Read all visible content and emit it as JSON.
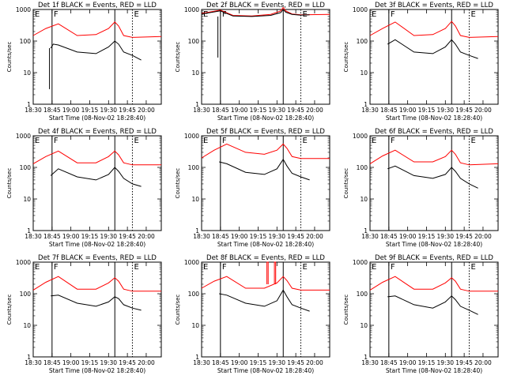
{
  "common": {
    "ylabel": "Counts/sec",
    "xlabel": "Start Time (08-Nov-02 18:28:40)",
    "x_tick_labels": [
      "18:30",
      "18:45",
      "19:00",
      "19:15",
      "19:30",
      "19:45",
      "20:00"
    ],
    "y_tick_labels": [
      "1",
      "10",
      "100",
      "1000"
    ],
    "marker_labels": [
      "E",
      "F",
      "E"
    ]
  },
  "chart_data": [
    {
      "type": "line",
      "title": "Det 1f BLACK = Events, RED = LLD",
      "xlabel": "Start Time (08-Nov-02 18:28:40)",
      "ylabel": "Counts/sec",
      "x_minutes": [
        0,
        102
      ],
      "ylim": [
        1,
        1000
      ],
      "yscale": "log",
      "markers": [
        {
          "label": "E",
          "t": 0
        },
        {
          "label": "F",
          "t": 15
        },
        {
          "label": "",
          "t": 65
        },
        {
          "label": "E",
          "t": 79
        }
      ],
      "series": [
        {
          "name": "LLD",
          "color": "#ff0000",
          "t": [
            0,
            10,
            20,
            35,
            50,
            60,
            65,
            68,
            72,
            79,
            102
          ],
          "values": [
            150,
            250,
            350,
            150,
            160,
            250,
            400,
            300,
            150,
            130,
            140
          ]
        },
        {
          "name": "Events",
          "color": "#000000",
          "t": [
            14,
            16,
            20,
            35,
            50,
            60,
            65,
            68,
            72,
            79,
            86
          ],
          "values": [
            60,
            80,
            75,
            45,
            40,
            65,
            100,
            80,
            45,
            35,
            25
          ]
        },
        {
          "name": "Events-spike",
          "color": "#000000",
          "t": [
            13,
            13
          ],
          "values": [
            3,
            60
          ]
        }
      ]
    },
    {
      "type": "line",
      "title": "Det 2f BLACK = Events, RED = LLD",
      "xlabel": "Start Time (08-Nov-02 18:28:40)",
      "ylabel": "Counts/sec",
      "x_minutes": [
        0,
        102
      ],
      "ylim": [
        1,
        1000
      ],
      "yscale": "log",
      "markers": [
        {
          "label": "E",
          "t": 0
        },
        {
          "label": "F",
          "t": 15
        },
        {
          "label": "",
          "t": 65
        },
        {
          "label": "E",
          "t": 79
        }
      ],
      "series": [
        {
          "name": "LLD",
          "color": "#ff0000",
          "t": [
            0,
            15,
            25,
            40,
            55,
            63,
            65,
            67,
            72,
            79,
            102
          ],
          "values": [
            750,
            950,
            650,
            620,
            700,
            900,
            1150,
            900,
            720,
            680,
            700
          ]
        },
        {
          "name": "Events",
          "color": "#000000",
          "t": [
            0,
            15,
            25,
            40,
            55,
            63,
            65,
            67,
            72,
            79,
            86
          ],
          "values": [
            720,
            900,
            620,
            600,
            650,
            800,
            1000,
            820,
            700,
            660,
            680
          ]
        },
        {
          "name": "Events-spike",
          "color": "#000000",
          "t": [
            13,
            13
          ],
          "values": [
            30,
            600
          ]
        }
      ]
    },
    {
      "type": "line",
      "title": "Det 3f BLACK = Events, RED = LLD",
      "xlabel": "Start Time (08-Nov-02 18:28:40)",
      "ylabel": "Counts/sec",
      "x_minutes": [
        0,
        102
      ],
      "ylim": [
        1,
        1000
      ],
      "yscale": "log",
      "markers": [
        {
          "label": "E",
          "t": 0
        },
        {
          "label": "F",
          "t": 15
        },
        {
          "label": "",
          "t": 65
        },
        {
          "label": "E",
          "t": 79
        }
      ],
      "series": [
        {
          "name": "LLD",
          "color": "#ff0000",
          "t": [
            0,
            10,
            20,
            35,
            50,
            60,
            65,
            68,
            72,
            79,
            102
          ],
          "values": [
            150,
            250,
            400,
            150,
            160,
            250,
            420,
            300,
            150,
            130,
            140
          ]
        },
        {
          "name": "Events",
          "color": "#000000",
          "t": [
            14,
            20,
            35,
            50,
            60,
            65,
            68,
            72,
            79,
            86
          ],
          "values": [
            80,
            110,
            45,
            40,
            65,
            110,
            80,
            45,
            35,
            28
          ]
        }
      ]
    },
    {
      "type": "line",
      "title": "Det 4f BLACK = Events, RED = LLD",
      "xlabel": "Start Time (08-Nov-02 18:28:40)",
      "ylabel": "Counts/sec",
      "x_minutes": [
        0,
        102
      ],
      "ylim": [
        1,
        1000
      ],
      "yscale": "log",
      "markers": [
        {
          "label": "E",
          "t": 0
        },
        {
          "label": "F",
          "t": 15
        },
        {
          "label": "",
          "t": 65
        },
        {
          "label": "E",
          "t": 79
        }
      ],
      "series": [
        {
          "name": "LLD",
          "color": "#ff0000",
          "t": [
            0,
            10,
            20,
            35,
            50,
            60,
            65,
            68,
            72,
            79,
            102
          ],
          "values": [
            130,
            220,
            330,
            140,
            140,
            220,
            330,
            250,
            140,
            120,
            120
          ]
        },
        {
          "name": "Events",
          "color": "#000000",
          "t": [
            14,
            20,
            35,
            50,
            60,
            65,
            68,
            72,
            79,
            86
          ],
          "values": [
            55,
            90,
            50,
            40,
            60,
            100,
            75,
            45,
            30,
            25
          ]
        }
      ]
    },
    {
      "type": "line",
      "title": "Det 5f BLACK = Events, RED = LLD",
      "xlabel": "Start Time (08-Nov-02 18:28:40)",
      "ylabel": "Counts/sec",
      "x_minutes": [
        0,
        102
      ],
      "ylim": [
        1,
        1000
      ],
      "yscale": "log",
      "markers": [
        {
          "label": "E",
          "t": 0
        },
        {
          "label": "F",
          "t": 15
        },
        {
          "label": "",
          "t": 65
        },
        {
          "label": "E",
          "t": 79
        }
      ],
      "series": [
        {
          "name": "LLD",
          "color": "#ff0000",
          "t": [
            0,
            10,
            20,
            35,
            50,
            60,
            65,
            68,
            72,
            79,
            102
          ],
          "values": [
            200,
            350,
            550,
            300,
            260,
            350,
            550,
            400,
            220,
            190,
            190
          ]
        },
        {
          "name": "Events",
          "color": "#000000",
          "t": [
            14,
            20,
            35,
            50,
            60,
            65,
            68,
            72,
            79,
            86
          ],
          "values": [
            150,
            130,
            70,
            60,
            90,
            180,
            110,
            65,
            50,
            40
          ]
        }
      ]
    },
    {
      "type": "line",
      "title": "Det 6f BLACK = Events, RED = LLD",
      "xlabel": "Start Time (08-Nov-02 18:28:40)",
      "ylabel": "Counts/sec",
      "x_minutes": [
        0,
        102
      ],
      "ylim": [
        1,
        1000
      ],
      "yscale": "log",
      "markers": [
        {
          "label": "E",
          "t": 0
        },
        {
          "label": "F",
          "t": 15
        },
        {
          "label": "",
          "t": 65
        },
        {
          "label": "E",
          "t": 79
        }
      ],
      "series": [
        {
          "name": "LLD",
          "color": "#ff0000",
          "t": [
            0,
            10,
            20,
            35,
            50,
            60,
            65,
            68,
            72,
            79,
            102
          ],
          "values": [
            130,
            230,
            350,
            150,
            150,
            220,
            350,
            260,
            140,
            120,
            130
          ]
        },
        {
          "name": "Events",
          "color": "#000000",
          "t": [
            14,
            20,
            35,
            50,
            60,
            65,
            68,
            72,
            79,
            86
          ],
          "values": [
            90,
            110,
            55,
            45,
            60,
            100,
            75,
            45,
            30,
            22
          ]
        }
      ]
    },
    {
      "type": "line",
      "title": "Det 7f BLACK = Events, RED = LLD",
      "xlabel": "Start Time (08-Nov-02 18:28:40)",
      "ylabel": "Counts/sec",
      "x_minutes": [
        0,
        102
      ],
      "ylim": [
        1,
        1000
      ],
      "yscale": "log",
      "markers": [
        {
          "label": "E",
          "t": 0
        },
        {
          "label": "F",
          "t": 15
        },
        {
          "label": "",
          "t": 65
        },
        {
          "label": "E",
          "t": 79
        }
      ],
      "series": [
        {
          "name": "LLD",
          "color": "#ff0000",
          "t": [
            0,
            10,
            20,
            35,
            50,
            60,
            65,
            68,
            72,
            79,
            102
          ],
          "values": [
            130,
            230,
            350,
            140,
            140,
            220,
            320,
            250,
            140,
            120,
            120
          ]
        },
        {
          "name": "Events",
          "color": "#000000",
          "t": [
            14,
            20,
            35,
            50,
            60,
            65,
            68,
            72,
            79,
            86
          ],
          "values": [
            85,
            90,
            50,
            40,
            55,
            80,
            70,
            45,
            35,
            30
          ]
        }
      ]
    },
    {
      "type": "line",
      "title": "Det 8f BLACK = Events, RED = LLD",
      "xlabel": "Start Time (08-Nov-02 18:28:40)",
      "ylabel": "Counts/sec",
      "x_minutes": [
        0,
        102
      ],
      "ylim": [
        1,
        1000
      ],
      "yscale": "log",
      "markers": [
        {
          "label": "E",
          "t": 0
        },
        {
          "label": "F",
          "t": 15
        },
        {
          "label": "",
          "t": 65
        },
        {
          "label": "E",
          "t": 79
        }
      ],
      "series": [
        {
          "name": "LLD",
          "color": "#ff0000",
          "t": [
            0,
            10,
            20,
            35,
            50,
            60,
            65,
            68,
            72,
            79,
            102
          ],
          "values": [
            150,
            250,
            350,
            150,
            150,
            220,
            350,
            260,
            150,
            130,
            130
          ]
        },
        {
          "name": "Events",
          "color": "#000000",
          "t": [
            14,
            20,
            35,
            50,
            60,
            65,
            68,
            72,
            79,
            86
          ],
          "values": [
            100,
            90,
            50,
            40,
            60,
            130,
            80,
            45,
            35,
            28
          ]
        },
        {
          "name": "LLD-spike-1",
          "color": "#ff0000",
          "t": [
            52,
            52,
            53,
            53
          ],
          "values": [
            200,
            1000,
            1000,
            200
          ]
        },
        {
          "name": "LLD-spike-2",
          "color": "#ff0000",
          "t": [
            58,
            58,
            59,
            59
          ],
          "values": [
            200,
            1000,
            1000,
            200
          ]
        }
      ]
    },
    {
      "type": "line",
      "title": "Det 9f BLACK = Events, RED = LLD",
      "xlabel": "Start Time (08-Nov-02 18:28:40)",
      "ylabel": "Counts/sec",
      "x_minutes": [
        0,
        102
      ],
      "ylim": [
        1,
        1000
      ],
      "yscale": "log",
      "markers": [
        {
          "label": "E",
          "t": 0
        },
        {
          "label": "F",
          "t": 15
        },
        {
          "label": "",
          "t": 65
        },
        {
          "label": "E",
          "t": 79
        }
      ],
      "series": [
        {
          "name": "LLD",
          "color": "#ff0000",
          "t": [
            0,
            10,
            20,
            35,
            50,
            60,
            65,
            68,
            72,
            79,
            102
          ],
          "values": [
            130,
            230,
            350,
            140,
            140,
            220,
            320,
            250,
            140,
            120,
            120
          ]
        },
        {
          "name": "Events",
          "color": "#000000",
          "t": [
            14,
            20,
            35,
            50,
            60,
            65,
            68,
            72,
            79,
            86
          ],
          "values": [
            80,
            85,
            45,
            35,
            55,
            85,
            65,
            40,
            30,
            22
          ]
        }
      ]
    }
  ]
}
